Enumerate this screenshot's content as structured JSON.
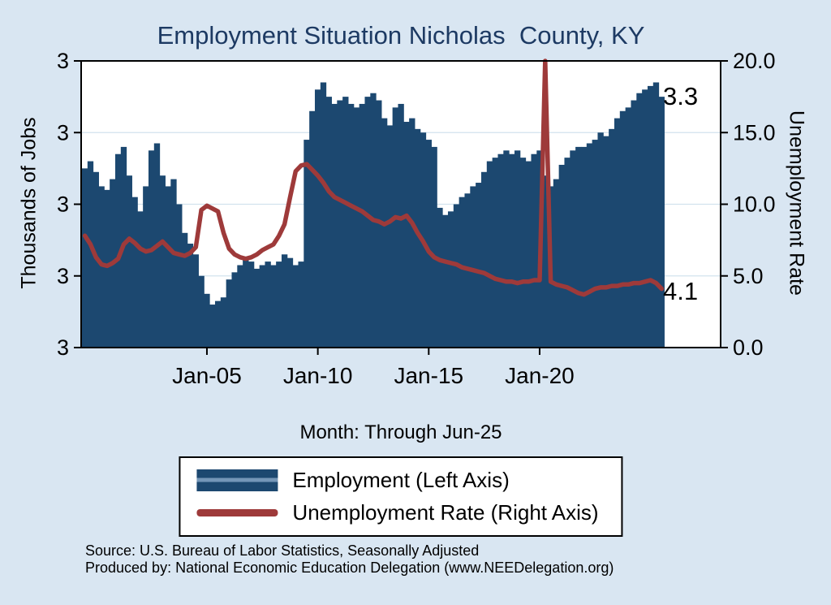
{
  "title": "Employment Situation Nicholas  County, KY",
  "left_axis": {
    "title": "Thousands of Jobs",
    "tick_labels": [
      "3",
      "3",
      "3",
      "3",
      "3"
    ],
    "lim": [
      2.6,
      3.4
    ]
  },
  "right_axis": {
    "title": "Unemployment Rate",
    "tick_labels": [
      "0.0",
      "5.0",
      "10.0",
      "15.0",
      "20.0"
    ],
    "tick_values": [
      0,
      5,
      10,
      15,
      20
    ],
    "lim": [
      0,
      20
    ]
  },
  "x_axis": {
    "label": "Month: Through Jun-25",
    "tick_labels": [
      "Jan-05",
      "Jan-10",
      "Jan-15",
      "Jan-20"
    ],
    "tick_values": [
      2005,
      2010,
      2015,
      2020
    ],
    "lim": [
      1999.33,
      2028.16
    ]
  },
  "annotations": {
    "employment_last": "3.3",
    "unemployment_last": "4.1"
  },
  "legend": [
    {
      "label": "Employment (Left Axis)",
      "type": "bar"
    },
    {
      "label": "Unemployment Rate (Right Axis)",
      "type": "line"
    }
  ],
  "source_line1": "Source: U.S. Bureau of Labor Statistics, Seasonally Adjusted",
  "source_line2": "Produced by: National Economic Education Delegation (www.NEEDelegation.org)",
  "colors": {
    "employment": "#1c4870",
    "unemployment": "#9e3a3a",
    "background": "#d9e6f2",
    "grid": "#d2e2ee",
    "title": "#1d3a63"
  },
  "chart_data": {
    "type": "bar",
    "title": "Employment Situation Nicholas County, KY",
    "xlabel": "Month: Through Jun-25",
    "ylabel_left": "Thousands of Jobs",
    "ylabel_right": "Unemployment Rate",
    "ylim_left": [
      2.6,
      3.4
    ],
    "ylim_right": [
      0,
      20
    ],
    "x_start": 1999.5,
    "x_step": 0.25,
    "x_unit": "decimal-year (quarterly samples of monthly data, Jul-1999 through Jun-2025)",
    "series": [
      {
        "name": "Employment (Left Axis)",
        "axis": "left",
        "style": "bar",
        "values": [
          3.1,
          3.12,
          3.09,
          3.05,
          3.04,
          3.07,
          3.14,
          3.16,
          3.08,
          3.02,
          2.98,
          3.05,
          3.15,
          3.17,
          3.08,
          3.05,
          3.07,
          3.0,
          2.92,
          2.89,
          2.86,
          2.8,
          2.75,
          2.72,
          2.73,
          2.74,
          2.79,
          2.81,
          2.83,
          2.85,
          2.84,
          2.82,
          2.83,
          2.84,
          2.83,
          2.84,
          2.86,
          2.85,
          2.83,
          2.84,
          3.18,
          3.26,
          3.32,
          3.34,
          3.3,
          3.28,
          3.29,
          3.3,
          3.28,
          3.27,
          3.28,
          3.3,
          3.31,
          3.29,
          3.24,
          3.22,
          3.27,
          3.28,
          3.23,
          3.24,
          3.21,
          3.2,
          3.18,
          3.16,
          2.99,
          2.97,
          2.98,
          3.0,
          3.02,
          3.03,
          3.05,
          3.06,
          3.09,
          3.12,
          3.13,
          3.14,
          3.15,
          3.14,
          3.15,
          3.13,
          3.12,
          3.14,
          3.15,
          3.08,
          3.05,
          3.07,
          3.11,
          3.13,
          3.15,
          3.16,
          3.16,
          3.17,
          3.18,
          3.2,
          3.19,
          3.21,
          3.24,
          3.26,
          3.27,
          3.29,
          3.31,
          3.32,
          3.33,
          3.34,
          3.3
        ]
      },
      {
        "name": "Unemployment Rate (Right Axis)",
        "axis": "right",
        "style": "line",
        "values": [
          7.8,
          7.2,
          6.3,
          5.8,
          5.7,
          5.9,
          6.2,
          7.2,
          7.6,
          7.3,
          6.9,
          6.7,
          6.8,
          7.1,
          7.4,
          7.0,
          6.6,
          6.5,
          6.4,
          6.6,
          7.0,
          9.6,
          9.9,
          9.7,
          9.5,
          8.0,
          6.9,
          6.5,
          6.3,
          6.2,
          6.3,
          6.5,
          6.8,
          7.0,
          7.2,
          7.8,
          8.6,
          10.5,
          12.3,
          12.7,
          12.8,
          12.4,
          12.0,
          11.5,
          10.9,
          10.5,
          10.3,
          10.1,
          9.9,
          9.7,
          9.5,
          9.2,
          8.9,
          8.8,
          8.6,
          8.8,
          9.1,
          9.0,
          9.2,
          8.7,
          8.0,
          7.4,
          6.7,
          6.3,
          6.1,
          6.0,
          5.9,
          5.8,
          5.6,
          5.5,
          5.4,
          5.3,
          5.2,
          5.0,
          4.8,
          4.7,
          4.6,
          4.6,
          4.5,
          4.6,
          4.6,
          4.7,
          4.7,
          20.0,
          4.6,
          4.4,
          4.3,
          4.2,
          4.0,
          3.8,
          3.7,
          3.9,
          4.1,
          4.2,
          4.2,
          4.3,
          4.3,
          4.4,
          4.4,
          4.5,
          4.5,
          4.6,
          4.7,
          4.5,
          4.1
        ]
      }
    ],
    "legend_position": "bottom",
    "grid": true
  }
}
